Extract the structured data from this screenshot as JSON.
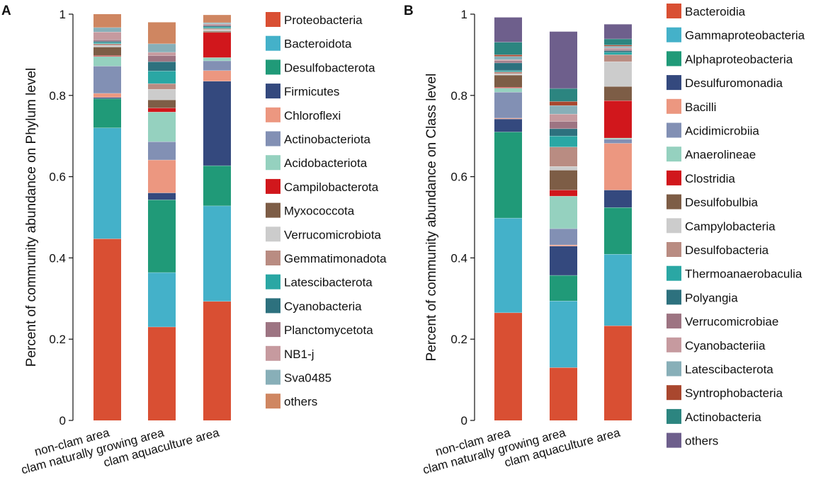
{
  "chart_data": [
    {
      "panel_label": "A",
      "type": "bar",
      "stacked": true,
      "ylabel": "Percent of community abundance on Phylum level",
      "xlabel": "",
      "ylim": [
        0,
        1
      ],
      "yticks": [
        "0",
        "0.2",
        "0.4",
        "0.6",
        "0.8",
        "1"
      ],
      "categories": [
        "non-clam area",
        "clam naturally growing area",
        "clam aquaculture area"
      ],
      "series": [
        {
          "name": "Proteobacteria",
          "color": "#D94F33",
          "values": [
            0.447,
            0.23,
            0.293
          ]
        },
        {
          "name": "Bacteroidota",
          "color": "#44B1C9",
          "values": [
            0.273,
            0.134,
            0.235
          ]
        },
        {
          "name": "Desulfobacterota",
          "color": "#209A78",
          "values": [
            0.072,
            0.179,
            0.099
          ]
        },
        {
          "name": "Firmicutes",
          "color": "#34497E",
          "values": [
            0.003,
            0.017,
            0.208
          ]
        },
        {
          "name": "Chloroflexi",
          "color": "#EC9780",
          "values": [
            0.01,
            0.081,
            0.026
          ]
        },
        {
          "name": "Actinobacteriota",
          "color": "#8290B4",
          "values": [
            0.067,
            0.045,
            0.024
          ]
        },
        {
          "name": "Acidobacteriota",
          "color": "#95D1BF",
          "values": [
            0.024,
            0.073,
            0.008
          ]
        },
        {
          "name": "Campilobacterota",
          "color": "#D1171C",
          "values": [
            0.002,
            0.01,
            0.062
          ]
        },
        {
          "name": "Myxococcota",
          "color": "#7D5D46",
          "values": [
            0.021,
            0.02,
            0.003
          ]
        },
        {
          "name": "Verrucomicrobiota",
          "color": "#CCCCCC",
          "values": [
            0.004,
            0.026,
            0.004
          ]
        },
        {
          "name": "Gemmatimonadota",
          "color": "#B98C82",
          "values": [
            0.004,
            0.014,
            0.003
          ]
        },
        {
          "name": "Latescibacterota",
          "color": "#2AA7A4",
          "values": [
            0.003,
            0.031,
            0.003
          ]
        },
        {
          "name": "Cyanobacteria",
          "color": "#2D717E",
          "values": [
            0.003,
            0.023,
            0.003
          ]
        },
        {
          "name": "Planctomycetota",
          "color": "#9D7482",
          "values": [
            0.004,
            0.015,
            0.003
          ]
        },
        {
          "name": "NB1-j",
          "color": "#C69A9F",
          "values": [
            0.019,
            0.008,
            0.002
          ]
        },
        {
          "name": "Sva0485",
          "color": "#88AFB8",
          "values": [
            0.011,
            0.021,
            0.003
          ]
        },
        {
          "name": "others",
          "color": "#CF8661",
          "values": [
            0.033,
            0.053,
            0.019
          ]
        }
      ]
    },
    {
      "panel_label": "B",
      "type": "bar",
      "stacked": true,
      "ylabel": "Percent of community abundance on Class level",
      "xlabel": "",
      "ylim": [
        0,
        1
      ],
      "yticks": [
        "0",
        "0.2",
        "0.4",
        "0.6",
        "0.8",
        "1"
      ],
      "categories": [
        "non-clam area",
        "clam naturally growing area",
        "clam aquaculture area"
      ],
      "series": [
        {
          "name": "Bacteroidia",
          "color": "#D94F33",
          "values": [
            0.265,
            0.13,
            0.233
          ]
        },
        {
          "name": "Gammaproteobacteria",
          "color": "#44B1C9",
          "values": [
            0.233,
            0.164,
            0.176
          ]
        },
        {
          "name": "Alphaproteobacteria",
          "color": "#209A78",
          "values": [
            0.212,
            0.063,
            0.115
          ]
        },
        {
          "name": "Desulfuromonadia",
          "color": "#34497E",
          "values": [
            0.032,
            0.072,
            0.043
          ]
        },
        {
          "name": "Bacilli",
          "color": "#EC9780",
          "values": [
            0.002,
            0.003,
            0.115
          ]
        },
        {
          "name": "Acidimicrobiia",
          "color": "#8290B4",
          "values": [
            0.064,
            0.04,
            0.01
          ]
        },
        {
          "name": "Anaerolineae",
          "color": "#95D1BF",
          "values": [
            0.01,
            0.08,
            0.003
          ]
        },
        {
          "name": "Clostridia",
          "color": "#D1171C",
          "values": [
            0.002,
            0.015,
            0.092
          ]
        },
        {
          "name": "Desulfobulbia",
          "color": "#7D5D46",
          "values": [
            0.03,
            0.049,
            0.035
          ]
        },
        {
          "name": "Campylobacteria",
          "color": "#CCCCCC",
          "values": [
            0.003,
            0.009,
            0.061
          ]
        },
        {
          "name": "Desulfobacteria",
          "color": "#B98C82",
          "values": [
            0.005,
            0.048,
            0.017
          ]
        },
        {
          "name": "Thermoanaerobaculia",
          "color": "#2AA7A4",
          "values": [
            0.003,
            0.027,
            0.006
          ]
        },
        {
          "name": "Polyangia",
          "color": "#2D717E",
          "values": [
            0.019,
            0.018,
            0.004
          ]
        },
        {
          "name": "Verrucomicrobiae",
          "color": "#9D7482",
          "values": [
            0.005,
            0.018,
            0.003
          ]
        },
        {
          "name": "Cyanobacteriia",
          "color": "#C69A9F",
          "values": [
            0.003,
            0.018,
            0.004
          ]
        },
        {
          "name": "Latescibacterota",
          "color": "#88AFB8",
          "values": [
            0.008,
            0.021,
            0.004
          ]
        },
        {
          "name": "Syntrophobacteria",
          "color": "#A9472E",
          "values": [
            0.004,
            0.01,
            0.003
          ]
        },
        {
          "name": "Actinobacteria",
          "color": "#2C8580",
          "values": [
            0.031,
            0.032,
            0.015
          ]
        },
        {
          "name": "others",
          "color": "#6E5F8C",
          "values": [
            0.061,
            0.14,
            0.036
          ]
        }
      ]
    }
  ]
}
